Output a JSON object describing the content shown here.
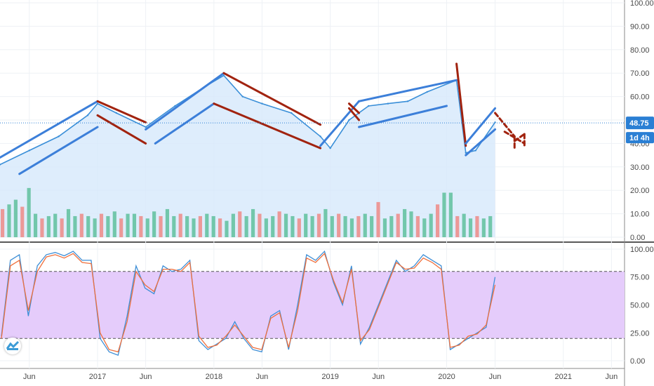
{
  "chart_data": [
    {
      "type": "line",
      "panel": "price",
      "ylim": [
        0,
        100
      ],
      "y_ticks": [
        "0.00",
        "10.00",
        "20.00",
        "30.00",
        "40.00",
        "50.00",
        "60.00",
        "70.00",
        "80.00",
        "90.00",
        "100.00"
      ],
      "x_ticks": [
        "Jun",
        "2017",
        "Jun",
        "2018",
        "Jun",
        "2019",
        "Jun",
        "2020",
        "Jun",
        "2021",
        "Jun"
      ],
      "last_price": "48.75",
      "countdown": "1d 4h",
      "price_series": {
        "x": [
          "2016-03",
          "2016-06",
          "2016-09",
          "2016-12",
          "2017-01",
          "2017-03",
          "2017-06",
          "2017-09",
          "2017-12",
          "2018-02",
          "2018-04",
          "2018-06",
          "2018-09",
          "2018-12",
          "2019-01",
          "2019-03",
          "2019-05",
          "2019-07",
          "2019-09",
          "2019-11",
          "2020-02",
          "2020-03",
          "2020-04",
          "2020-06"
        ],
        "y": [
          31,
          37,
          43,
          52,
          57,
          53,
          47,
          56,
          64,
          69,
          60,
          57,
          53,
          43,
          38,
          50,
          56,
          57,
          58,
          62,
          67,
          36,
          37,
          49
        ]
      },
      "volume": [
        12,
        14,
        16,
        13,
        21,
        10,
        8,
        9,
        10,
        8,
        12,
        9,
        10,
        9,
        8,
        10,
        9,
        11,
        8,
        10,
        10,
        9,
        8,
        11,
        9,
        12,
        9,
        10,
        9,
        8,
        9,
        10,
        9,
        8,
        7,
        10,
        11,
        9,
        12,
        10,
        8,
        9,
        11,
        10,
        9,
        8,
        10,
        9,
        10,
        12,
        9,
        10,
        9,
        8,
        9,
        10,
        9,
        15,
        8,
        9,
        10,
        12,
        11,
        9,
        8,
        10,
        14,
        19,
        19,
        9,
        10,
        8,
        9,
        8,
        9
      ]
    },
    {
      "type": "line",
      "panel": "stochastic",
      "ylim": [
        -5,
        105
      ],
      "y_ticks": [
        "0.00",
        "25.00",
        "50.00",
        "75.00",
        "100.00"
      ],
      "bands": [
        20,
        80
      ],
      "series": [
        {
          "color": "#3f8fd6",
          "values": [
            22,
            90,
            95,
            40,
            85,
            95,
            97,
            94,
            98,
            90,
            90,
            20,
            8,
            5,
            40,
            85,
            65,
            60,
            85,
            80,
            82,
            90,
            18,
            10,
            15,
            20,
            35,
            20,
            10,
            8,
            40,
            45,
            10,
            50,
            95,
            90,
            98,
            70,
            50,
            85,
            15,
            30,
            50,
            70,
            90,
            80,
            85,
            95,
            90,
            85,
            10,
            15,
            20,
            25,
            30,
            75
          ]
        },
        {
          "color": "#ef6f3c",
          "values": [
            20,
            85,
            90,
            45,
            80,
            93,
            95,
            92,
            96,
            88,
            87,
            25,
            10,
            8,
            35,
            80,
            68,
            62,
            82,
            82,
            80,
            88,
            22,
            12,
            14,
            22,
            32,
            22,
            12,
            10,
            38,
            43,
            12,
            45,
            92,
            88,
            96,
            72,
            52,
            82,
            18,
            28,
            48,
            68,
            88,
            82,
            83,
            92,
            88,
            82,
            12,
            14,
            22,
            24,
            32,
            68
          ]
        }
      ]
    }
  ],
  "colors": {
    "price_line": "#3a8fd8",
    "area_fill": "#d6e9fb",
    "up_volume": "#5fbf9c",
    "down_volume": "#ef8a86",
    "channel_blue": "#3c7fd9",
    "trend_red": "#a1230f",
    "stoch_band": "#e5ccfb",
    "price_tag": "#2a7fd4"
  },
  "icons": {
    "logo": "tradingview-logo-icon"
  }
}
